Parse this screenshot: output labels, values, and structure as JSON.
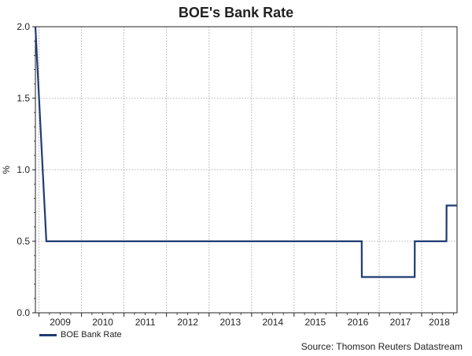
{
  "chart_data": {
    "type": "line",
    "title": "BOE's Bank Rate",
    "ylabel": "%",
    "xlabel": "",
    "ylim": [
      0.0,
      2.0
    ],
    "yticks": [
      0.0,
      0.5,
      1.0,
      1.5,
      2.0
    ],
    "ytick_labels": [
      "0.0",
      "0.5",
      "1.0",
      "1.5",
      "2.0"
    ],
    "xlim": [
      "2008-12-01",
      "2018-11-01"
    ],
    "xtick_labels": [
      "2009",
      "2010",
      "2011",
      "2012",
      "2013",
      "2014",
      "2015",
      "2016",
      "2017",
      "2018"
    ],
    "grid": true,
    "legend_position": "bottom-left",
    "series": [
      {
        "name": "BOE Bank Rate",
        "color": "#1f3b73",
        "points": [
          [
            "2008-12-01",
            2.0
          ],
          [
            "2009-03-05",
            0.5
          ],
          [
            "2016-08-04",
            0.5
          ],
          [
            "2016-08-05",
            0.25
          ],
          [
            "2017-11-02",
            0.25
          ],
          [
            "2017-11-03",
            0.5
          ],
          [
            "2018-08-02",
            0.5
          ],
          [
            "2018-08-03",
            0.75
          ],
          [
            "2018-11-01",
            0.75
          ]
        ]
      }
    ]
  },
  "source_text": "Source: Thomson Reuters Datastream"
}
